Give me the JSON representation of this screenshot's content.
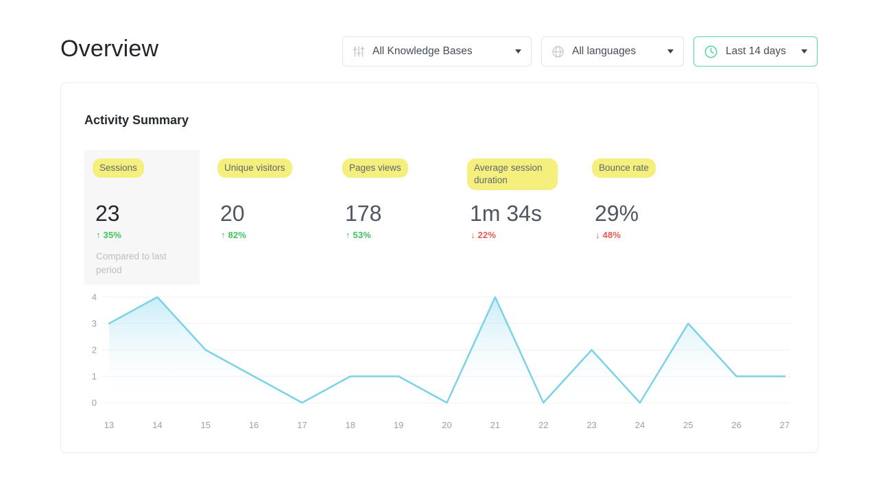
{
  "page": {
    "title": "Overview"
  },
  "filters": [
    {
      "label": "All Knowledge Bases",
      "icon": "sliders-icon"
    },
    {
      "label": "All languages",
      "icon": "globe-icon"
    },
    {
      "label": "Last 14 days",
      "icon": "clock-icon"
    }
  ],
  "activity": {
    "title": "Activity Summary",
    "metrics": [
      {
        "label": "Sessions",
        "value": "23",
        "arrow": "↑",
        "delta": "35%",
        "direction": "up",
        "selected": true,
        "note": "Compared to last period"
      },
      {
        "label": "Unique visitors",
        "value": "20",
        "arrow": "↑",
        "delta": "82%",
        "direction": "up"
      },
      {
        "label": "Pages views",
        "value": "178",
        "arrow": "↑",
        "delta": "53%",
        "direction": "up"
      },
      {
        "label": "Average session duration",
        "value": "1m 34s",
        "arrow": "↓",
        "delta": "22%",
        "direction": "down"
      },
      {
        "label": "Bounce rate",
        "value": "29%",
        "arrow": "↓",
        "delta": "48%",
        "direction": "down"
      }
    ]
  },
  "chart_data": {
    "type": "area",
    "title": "",
    "xlabel": "",
    "ylabel": "",
    "x": [
      13,
      14,
      15,
      16,
      17,
      18,
      19,
      20,
      21,
      22,
      23,
      24,
      25,
      26,
      27
    ],
    "values": [
      3,
      4,
      2,
      1,
      0,
      1,
      1,
      0,
      4,
      0,
      2,
      0,
      3,
      1,
      1
    ],
    "ylim": [
      0,
      4
    ],
    "yticks": [
      0,
      1,
      2,
      3,
      4
    ],
    "grid": true,
    "legend": "none",
    "line_color": "#7bd2e8",
    "area_top_color": "rgba(134,214,235,0.45)",
    "area_bottom_color": "rgba(255,255,255,0)"
  },
  "colors": {
    "accent_green": "#56d8a4",
    "positive": "#3fc45e",
    "negative": "#ee5a4e",
    "highlight_yellow": "#f5ef7d",
    "grid_line": "#f1f2f3",
    "tick_text": "#9aa1a8"
  }
}
